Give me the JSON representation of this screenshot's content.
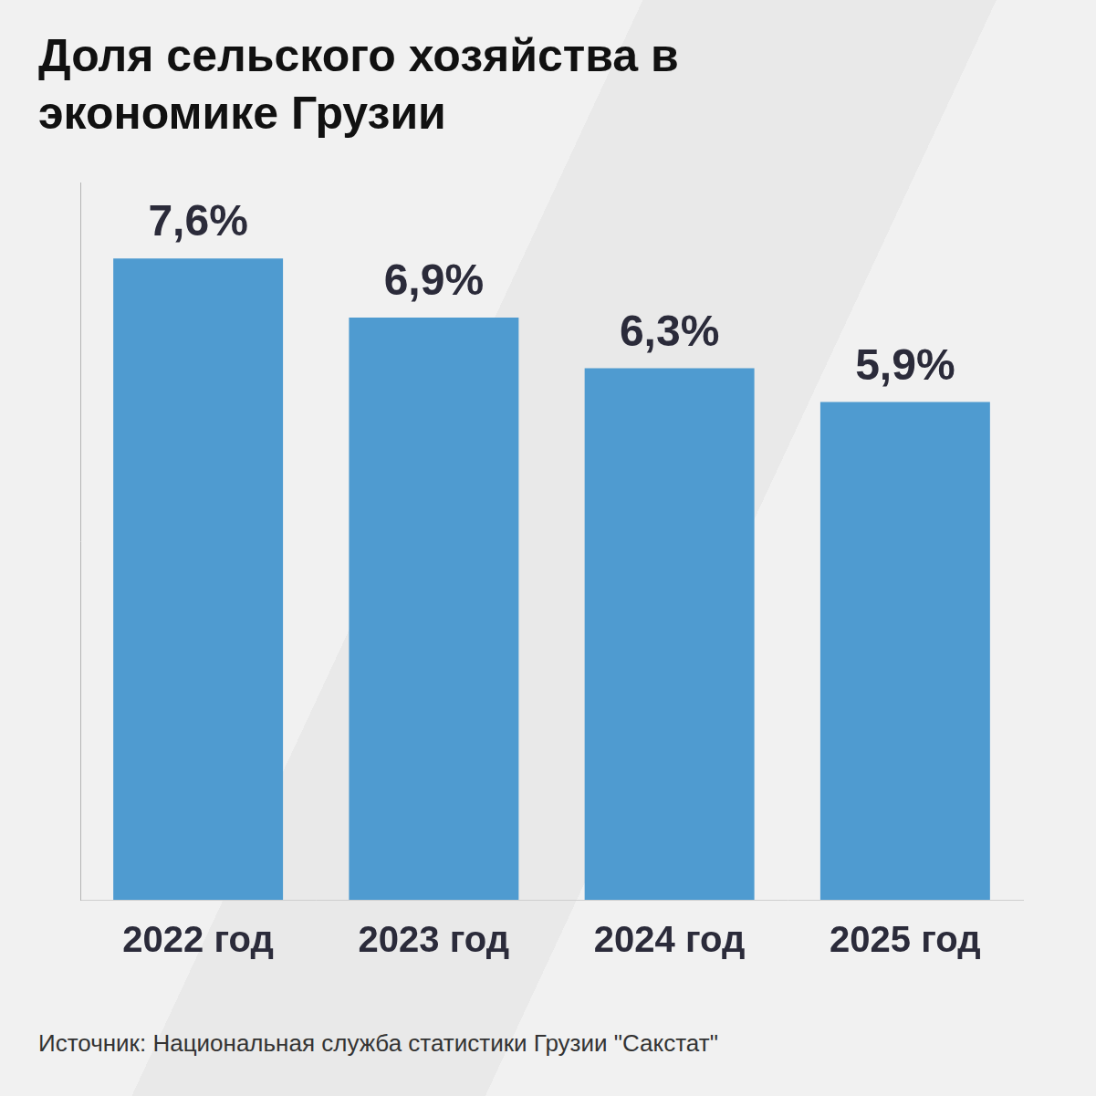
{
  "chart_data": {
    "type": "bar",
    "title": "Доля сельского хозяйства в экономике Грузии",
    "categories": [
      "2022 год",
      "2023 год",
      "2024 год",
      "2025 год"
    ],
    "values": [
      7.6,
      6.9,
      6.3,
      5.9
    ],
    "value_labels": [
      "7,6%",
      "6,9%",
      "6,3%",
      "5,9%"
    ],
    "data_labels": true,
    "color": "#4f9bd0",
    "ylim": [
      0,
      8.5
    ],
    "grid": false,
    "tick_labels": "x",
    "source": "Источник: Национальная служба статистики Грузии \"Сакстат\""
  }
}
